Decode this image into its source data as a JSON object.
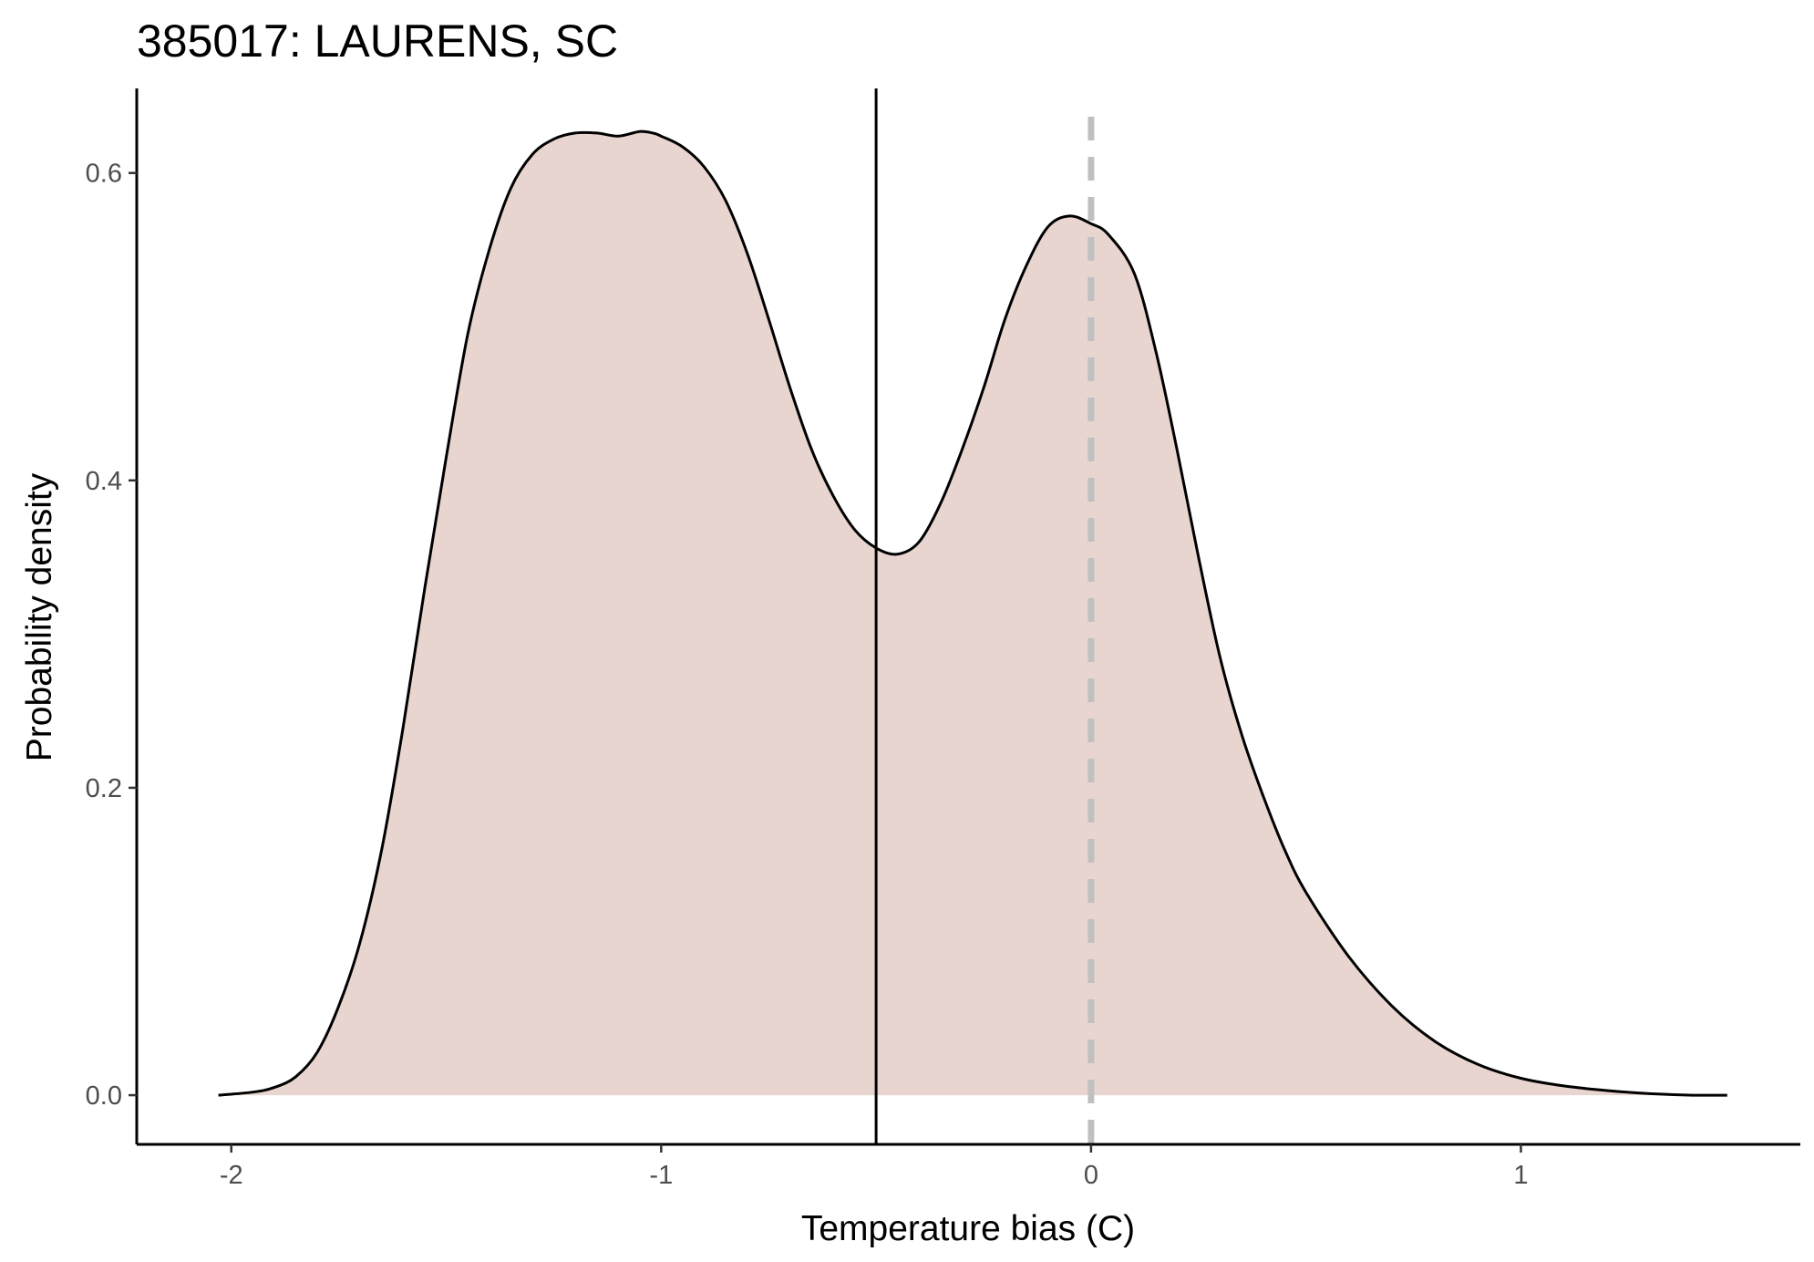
{
  "chart_data": {
    "type": "area",
    "title": "385017: LAURENS, SC",
    "xlabel": "Temperature bias (C)",
    "ylabel": "Probability density",
    "xlim": [
      -2.22,
      1.65
    ],
    "ylim": [
      -0.032,
      0.655
    ],
    "x_ticks": [
      -2,
      -1,
      0,
      1
    ],
    "x_tick_labels": [
      "-2",
      "-1",
      "0",
      "1"
    ],
    "y_ticks": [
      0.0,
      0.2,
      0.4,
      0.6
    ],
    "y_tick_labels": [
      "0.0",
      "0.2",
      "0.4",
      "0.6"
    ],
    "grid": false,
    "fill_color": "#e8d5cf",
    "line_color": "#000000",
    "series": [
      {
        "x": [
          -2.03,
          -1.95,
          -1.9,
          -1.85,
          -1.8,
          -1.75,
          -1.7,
          -1.65,
          -1.6,
          -1.55,
          -1.5,
          -1.45,
          -1.4,
          -1.35,
          -1.3,
          -1.25,
          -1.2,
          -1.15,
          -1.1,
          -1.05,
          -1.02,
          -1.0,
          -0.95,
          -0.9,
          -0.85,
          -0.8,
          -0.75,
          -0.7,
          -0.65,
          -0.6,
          -0.55,
          -0.5,
          -0.45,
          -0.4,
          -0.35,
          -0.3,
          -0.25,
          -0.2,
          -0.15,
          -0.1,
          -0.05,
          0.0,
          0.04,
          0.1,
          0.15,
          0.2,
          0.25,
          0.3,
          0.35,
          0.4,
          0.45,
          0.5,
          0.6,
          0.7,
          0.8,
          0.9,
          1.0,
          1.1,
          1.2,
          1.3,
          1.4,
          1.48
        ],
        "y": [
          0.0,
          0.002,
          0.005,
          0.012,
          0.028,
          0.058,
          0.1,
          0.16,
          0.24,
          0.33,
          0.415,
          0.495,
          0.55,
          0.59,
          0.612,
          0.622,
          0.626,
          0.626,
          0.624,
          0.627,
          0.626,
          0.624,
          0.617,
          0.604,
          0.582,
          0.548,
          0.505,
          0.46,
          0.42,
          0.39,
          0.368,
          0.356,
          0.352,
          0.36,
          0.385,
          0.42,
          0.46,
          0.505,
          0.54,
          0.565,
          0.572,
          0.567,
          0.56,
          0.535,
          0.485,
          0.42,
          0.35,
          0.285,
          0.235,
          0.195,
          0.16,
          0.132,
          0.09,
          0.058,
          0.035,
          0.02,
          0.011,
          0.006,
          0.003,
          0.001,
          0.0,
          0.0
        ]
      }
    ],
    "reference_lines": [
      {
        "x": -0.5,
        "style": "solid",
        "color": "#000000"
      },
      {
        "x": 0.0,
        "style": "dashed",
        "color": "#c0c0c0"
      }
    ]
  }
}
